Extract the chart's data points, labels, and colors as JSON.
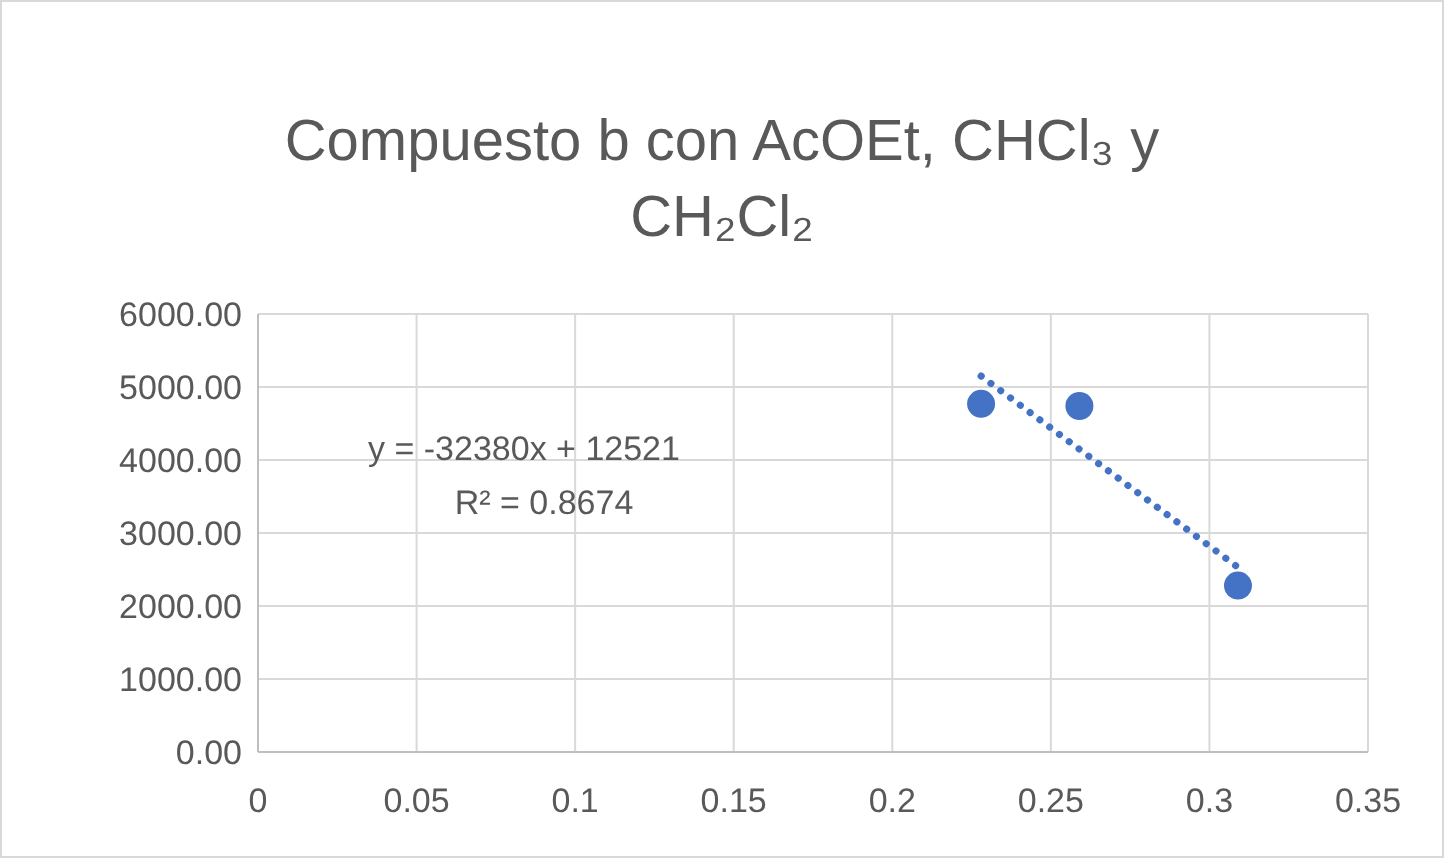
{
  "chart_data": {
    "type": "scatter",
    "title": "Compuesto b con AcOEt, CHCl₃ y CH₂Cl₂",
    "xlim": [
      0,
      0.35
    ],
    "xticks": [
      0,
      0.05,
      0.1,
      0.15,
      0.2,
      0.25,
      0.3,
      0.35
    ],
    "ylim": [
      0,
      6000
    ],
    "yticks": [
      {
        "value": 0,
        "label": "0.00"
      },
      {
        "value": 1000,
        "label": "1000.00"
      },
      {
        "value": 2000,
        "label": "2000.00"
      },
      {
        "value": 3000,
        "label": "3000.00"
      },
      {
        "value": 4000,
        "label": "4000.00"
      },
      {
        "value": 5000,
        "label": "5000.00"
      },
      {
        "value": 6000,
        "label": "6000.00"
      }
    ],
    "grid": true,
    "marker": "circle",
    "series": [
      {
        "color": "#4472c4",
        "x": [
          0.228,
          0.259,
          0.309
        ],
        "values": [
          4770,
          4740,
          2280
        ]
      },
      {
        "type": "line",
        "color": "#4472c4",
        "line_style": "dotted",
        "marker": "none",
        "x": [
          0.228,
          0.309
        ],
        "values": [
          5150,
          2530
        ]
      }
    ],
    "annotations": [
      "y = -32380x + 12521",
      "R² = 0.8674"
    ]
  }
}
